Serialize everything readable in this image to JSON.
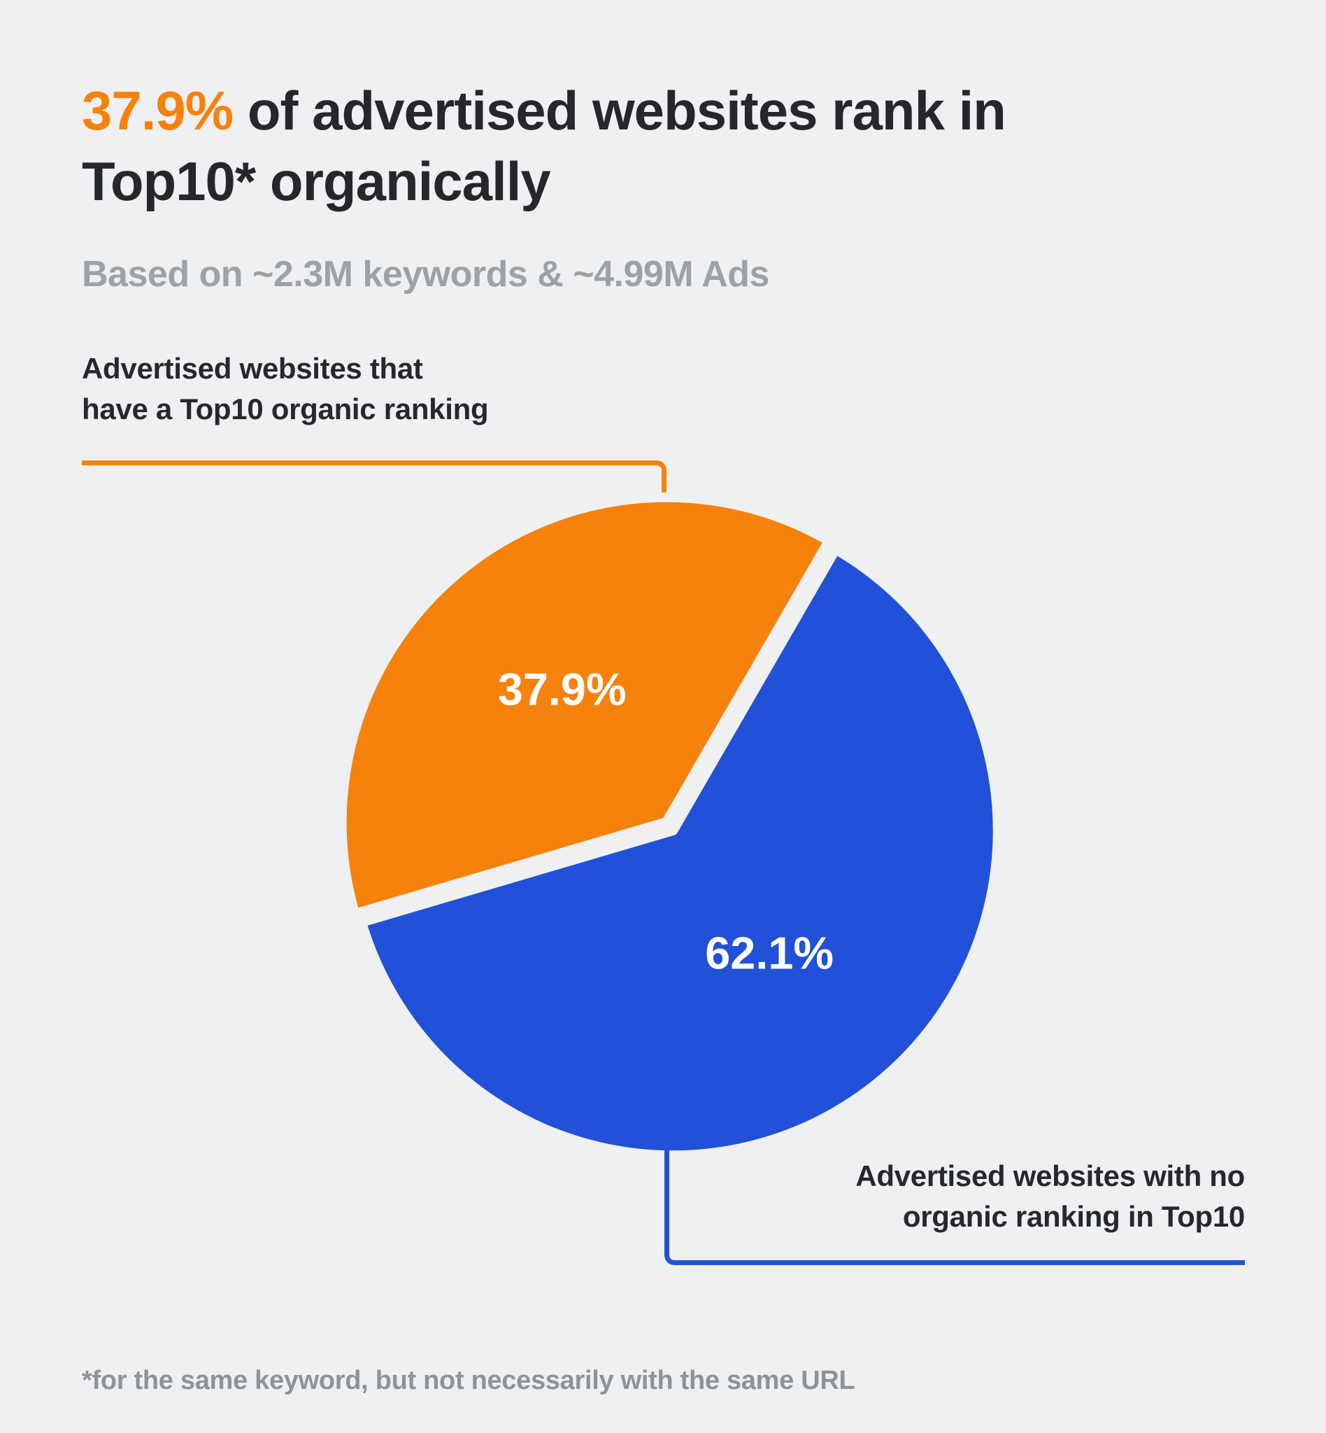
{
  "page": {
    "background_color": "#eff0f2",
    "accent_orange": "#f6820c",
    "accent_blue": "#2151d8"
  },
  "title": {
    "highlight": "37.9%",
    "rest_line1": " of advertised websites rank in",
    "line2": "Top10* organically"
  },
  "subtitle": "Based on ~2.3M keywords & ~4.99M Ads",
  "callouts": {
    "orange_line1": "Advertised websites that",
    "orange_line2": "have a Top10 organic ranking",
    "blue_line1": "Advertised websites with no",
    "blue_line2": "organic ranking in Top10"
  },
  "footnote": "*for the same keyword, but not necessarily with the same URL",
  "chart_data": {
    "type": "pie",
    "title": "37.9% of advertised websites rank in Top10* organically",
    "subtitle": "Based on ~2.3M keywords & ~4.99M Ads",
    "rotation_deg": -106.4,
    "gap_color": "#eff0f2",
    "legend_position": "callout-labels",
    "slices": [
      {
        "label": "Advertised websites that have a Top10 organic ranking",
        "value": 37.9,
        "display": "37.9%",
        "color": "#f6820c",
        "offset": 0,
        "label_r": 0.52
      },
      {
        "label": "Advertised websites with no organic ranking in Top10",
        "value": 62.1,
        "display": "62.1%",
        "color": "#2151d8",
        "offset": 14,
        "label_r": 0.48
      }
    ]
  }
}
